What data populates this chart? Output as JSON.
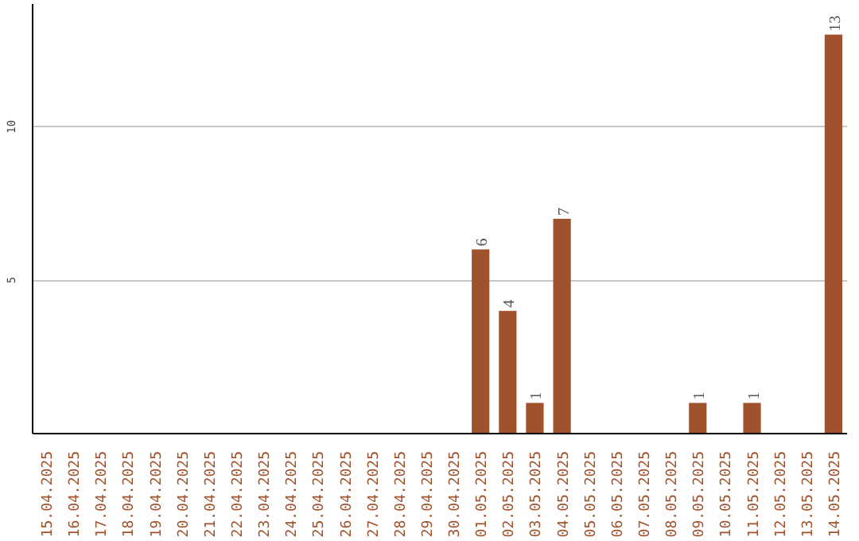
{
  "chart_data": {
    "type": "bar",
    "categories": [
      "15.04.2025",
      "16.04.2025",
      "17.04.2025",
      "18.04.2025",
      "19.04.2025",
      "20.04.2025",
      "21.04.2025",
      "22.04.2025",
      "23.04.2025",
      "24.04.2025",
      "25.04.2025",
      "26.04.2025",
      "27.04.2025",
      "28.04.2025",
      "29.04.2025",
      "30.04.2025",
      "01.05.2025",
      "02.05.2025",
      "03.05.2025",
      "04.05.2025",
      "05.05.2025",
      "06.05.2025",
      "07.05.2025",
      "08.05.2025",
      "09.05.2025",
      "10.05.2025",
      "11.05.2025",
      "12.05.2025",
      "13.05.2025",
      "14.05.2025"
    ],
    "values": [
      0,
      0,
      0,
      0,
      0,
      0,
      0,
      0,
      0,
      0,
      0,
      0,
      0,
      0,
      0,
      0,
      6,
      4,
      1,
      7,
      0,
      0,
      0,
      0,
      1,
      0,
      1,
      0,
      0,
      13
    ],
    "value_labels": [
      null,
      null,
      null,
      null,
      null,
      null,
      null,
      null,
      null,
      null,
      null,
      null,
      null,
      null,
      null,
      null,
      "6",
      "4",
      "1",
      "7",
      null,
      null,
      null,
      null,
      "1",
      null,
      "1",
      null,
      null,
      "13"
    ],
    "color": "#a0522d",
    "ylim": [
      0,
      14
    ],
    "yticks": [
      5,
      10
    ],
    "grid": "y"
  }
}
